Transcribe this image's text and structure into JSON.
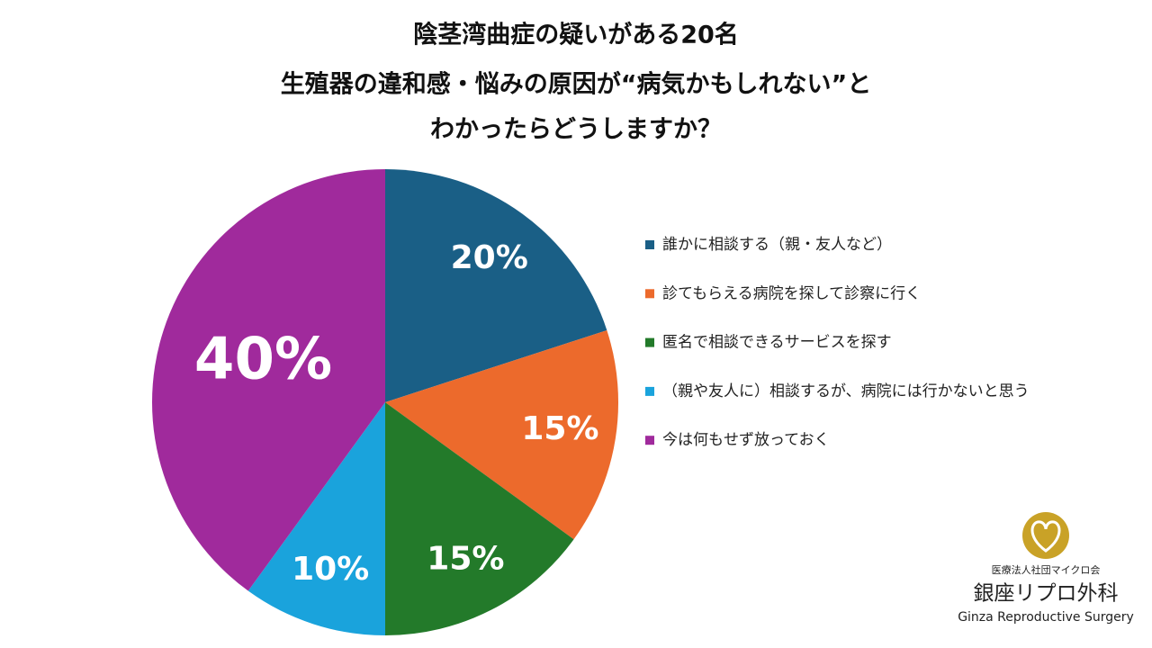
{
  "chart_data": {
    "type": "pie",
    "title": [
      "陰茎湾曲症の疑いがある20名",
      "生殖器の違和感・悩みの原因が“病気かもしれない”と",
      "わかったらどうしますか？"
    ],
    "categories": [
      "誰かに相談する（親・友人など）",
      "診てもらえる病院を探して診察に行く",
      "匿名で相談できるサービスを探す",
      "（親や友人に）相談するが、病院には行かないと思う",
      "今は何もせず放っておく"
    ],
    "values": [
      20,
      15,
      15,
      10,
      40
    ],
    "value_labels": [
      "20%",
      "15%",
      "15%",
      "10%",
      "40%"
    ],
    "colors": [
      "#1a5f86",
      "#ec6a2c",
      "#237a2a",
      "#1aa3dc",
      "#a02a9c"
    ],
    "legend": "right"
  },
  "logo": {
    "org": "医療法人社団マイクロ会",
    "name": "銀座リプロ外科",
    "english": "Ginza Reproductive Surgery"
  }
}
